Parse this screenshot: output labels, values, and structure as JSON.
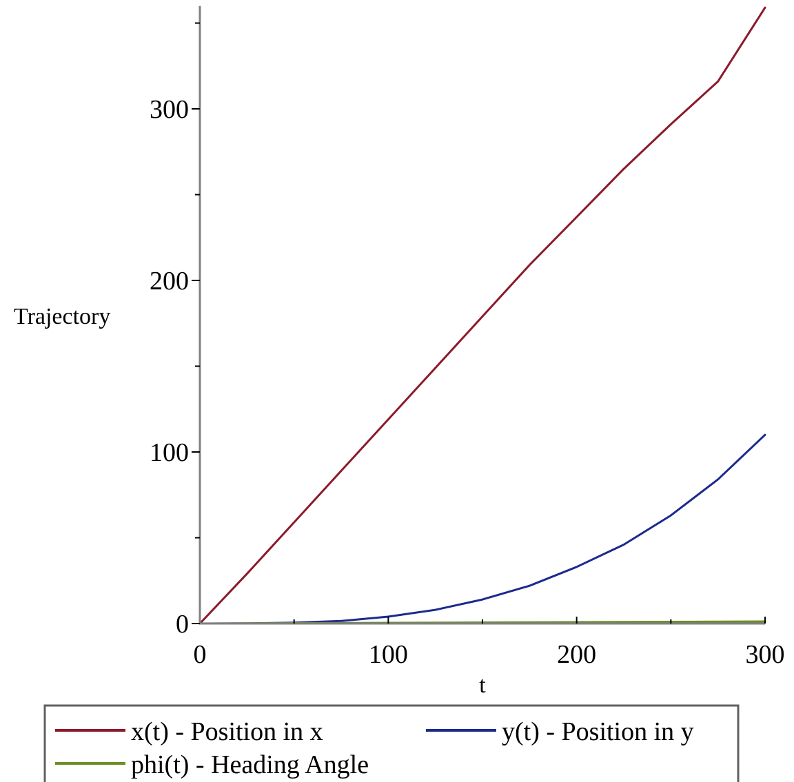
{
  "chart_data": {
    "type": "line",
    "title": "",
    "xlabel": "t",
    "ylabel": "Trajectory",
    "xlim": [
      0,
      300
    ],
    "ylim": [
      0,
      360
    ],
    "x_ticks": [
      0,
      100,
      200,
      300
    ],
    "y_ticks": [
      0,
      100,
      200,
      300
    ],
    "x_tick_labels": [
      "0",
      "100",
      "200",
      "300"
    ],
    "y_tick_labels": [
      "0",
      "100",
      "200",
      "300"
    ],
    "x_minor_step": 50,
    "y_minor_step": 50,
    "grid": false,
    "legend_placement": "bottom",
    "axis_color": "#808080",
    "series": [
      {
        "name": "x(t) - Position in x",
        "color": "#8b1a2b",
        "x": [
          0,
          25,
          50,
          75,
          100,
          125,
          150,
          175,
          200,
          225,
          250,
          275,
          300
        ],
        "values": [
          0,
          29,
          59,
          89,
          119,
          149,
          179,
          209,
          237,
          265,
          291,
          316,
          359
        ]
      },
      {
        "name": "y(t) - Position in y",
        "color": "#1c2a8c",
        "x": [
          0,
          25,
          50,
          75,
          100,
          125,
          150,
          175,
          200,
          225,
          250,
          275,
          300
        ],
        "values": [
          0,
          0.1,
          0.5,
          1.5,
          4,
          8,
          14,
          22,
          33,
          46,
          63,
          84,
          110
        ]
      },
      {
        "name": "phi(t) - Heading Angle",
        "color": "#6b8e23",
        "x": [
          0,
          50,
          100,
          150,
          200,
          250,
          300
        ],
        "values": [
          0,
          0.2,
          0.4,
          0.6,
          0.8,
          1.0,
          1.2
        ]
      }
    ]
  }
}
